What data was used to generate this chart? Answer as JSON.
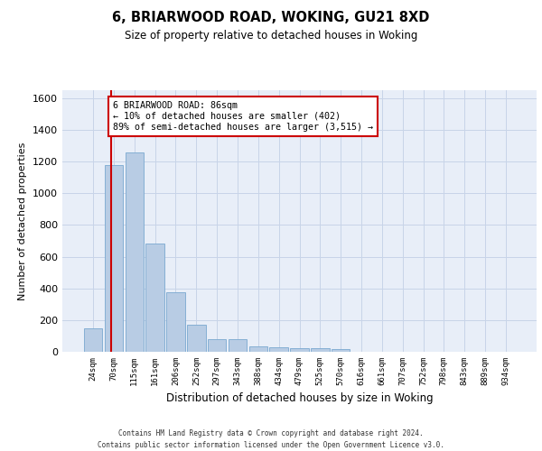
{
  "title1": "6, BRIARWOOD ROAD, WOKING, GU21 8XD",
  "title2": "Size of property relative to detached houses in Woking",
  "xlabel": "Distribution of detached houses by size in Woking",
  "ylabel": "Number of detached properties",
  "categories": [
    "24sqm",
    "70sqm",
    "115sqm",
    "161sqm",
    "206sqm",
    "252sqm",
    "297sqm",
    "343sqm",
    "388sqm",
    "434sqm",
    "479sqm",
    "525sqm",
    "570sqm",
    "616sqm",
    "661sqm",
    "707sqm",
    "752sqm",
    "798sqm",
    "843sqm",
    "889sqm",
    "934sqm"
  ],
  "values": [
    150,
    1175,
    1260,
    680,
    375,
    170,
    80,
    80,
    35,
    30,
    20,
    20,
    15,
    0,
    0,
    0,
    0,
    0,
    0,
    0,
    0
  ],
  "bar_color": "#b8cce4",
  "bar_edge_color": "#7aa8d0",
  "grid_color": "#c8d4e8",
  "background_color": "#e8eef8",
  "vline_color": "#cc0000",
  "annotation_text": "6 BRIARWOOD ROAD: 86sqm\n← 10% of detached houses are smaller (402)\n89% of semi-detached houses are larger (3,515) →",
  "annotation_box_color": "#cc0000",
  "ylim": [
    0,
    1650
  ],
  "yticks": [
    0,
    200,
    400,
    600,
    800,
    1000,
    1200,
    1400,
    1600
  ],
  "footer1": "Contains HM Land Registry data © Crown copyright and database right 2024.",
  "footer2": "Contains public sector information licensed under the Open Government Licence v3.0."
}
